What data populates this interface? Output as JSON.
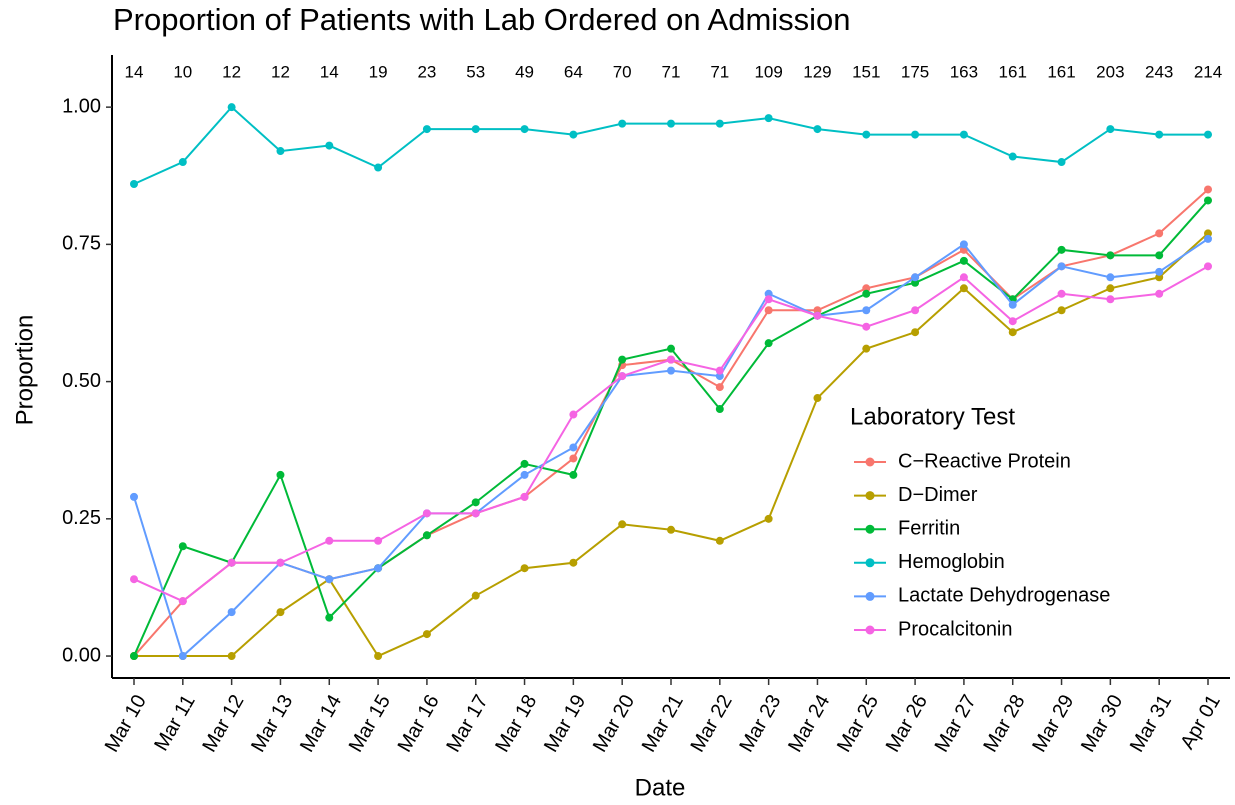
{
  "chart_data": {
    "type": "line",
    "title": "Proportion of Patients with Lab Ordered on Admission",
    "x_label": "Date",
    "y_label": "Proportion",
    "categories": [
      "Mar 10",
      "Mar 11",
      "Mar 12",
      "Mar 13",
      "Mar 14",
      "Mar 15",
      "Mar 16",
      "Mar 17",
      "Mar 18",
      "Mar 19",
      "Mar 20",
      "Mar 21",
      "Mar 22",
      "Mar 23",
      "Mar 24",
      "Mar 25",
      "Mar 26",
      "Mar 27",
      "Mar 28",
      "Mar 29",
      "Mar 30",
      "Mar 31",
      "Apr 01"
    ],
    "annotations": [
      14,
      10,
      12,
      12,
      14,
      19,
      23,
      53,
      49,
      64,
      70,
      71,
      71,
      109,
      129,
      151,
      175,
      163,
      161,
      161,
      203,
      243,
      214
    ],
    "series": [
      {
        "name": "C−Reactive Protein",
        "color": "#F8766D",
        "values": [
          0,
          0.1,
          0.17,
          0.17,
          0.14,
          0.16,
          0.22,
          0.26,
          0.29,
          0.36,
          0.53,
          0.54,
          0.49,
          0.63,
          0.63,
          0.67,
          0.69,
          0.74,
          0.65,
          0.71,
          0.73,
          0.77,
          0.85
        ]
      },
      {
        "name": "D−Dimer",
        "color": "#B79F00",
        "values": [
          0,
          0,
          0,
          0.08,
          0.14,
          0,
          0.04,
          0.11,
          0.16,
          0.17,
          0.24,
          0.23,
          0.21,
          0.25,
          0.47,
          0.56,
          0.59,
          0.67,
          0.59,
          0.63,
          0.67,
          0.69,
          0.77
        ]
      },
      {
        "name": "Ferritin",
        "color": "#00BA38",
        "values": [
          0,
          0.2,
          0.17,
          0.33,
          0.07,
          0.16,
          0.22,
          0.28,
          0.35,
          0.33,
          0.54,
          0.56,
          0.45,
          0.57,
          0.62,
          0.66,
          0.68,
          0.72,
          0.65,
          0.74,
          0.73,
          0.73,
          0.83
        ]
      },
      {
        "name": "Hemoglobin",
        "color": "#00BFC4",
        "values": [
          0.86,
          0.9,
          1.0,
          0.92,
          0.93,
          0.89,
          0.96,
          0.96,
          0.96,
          0.95,
          0.97,
          0.97,
          0.97,
          0.98,
          0.96,
          0.95,
          0.95,
          0.95,
          0.91,
          0.9,
          0.96,
          0.95,
          0.95
        ]
      },
      {
        "name": "Lactate Dehydrogenase",
        "color": "#619CFF",
        "values": [
          0.29,
          0,
          0.08,
          0.17,
          0.14,
          0.16,
          0.26,
          0.26,
          0.33,
          0.38,
          0.51,
          0.52,
          0.51,
          0.66,
          0.62,
          0.63,
          0.69,
          0.75,
          0.64,
          0.71,
          0.69,
          0.7,
          0.76
        ]
      },
      {
        "name": "Procalcitonin",
        "color": "#F564E3",
        "values": [
          0.14,
          0.1,
          0.17,
          0.17,
          0.21,
          0.21,
          0.26,
          0.26,
          0.29,
          0.44,
          0.51,
          0.54,
          0.52,
          0.65,
          0.62,
          0.6,
          0.63,
          0.69,
          0.61,
          0.66,
          0.65,
          0.66,
          0.71
        ]
      }
    ],
    "ylim": [
      -0.04,
      1.095
    ],
    "yticks": [
      {
        "value": 0,
        "label": "0.00"
      },
      {
        "value": 0.25,
        "label": "0.25"
      },
      {
        "value": 0.5,
        "label": "0.50"
      },
      {
        "value": 0.75,
        "label": "0.75"
      },
      {
        "value": 1,
        "label": "1.00"
      }
    ],
    "grid": false,
    "legend": {
      "title": "Laboratory Test",
      "position": "right"
    }
  }
}
